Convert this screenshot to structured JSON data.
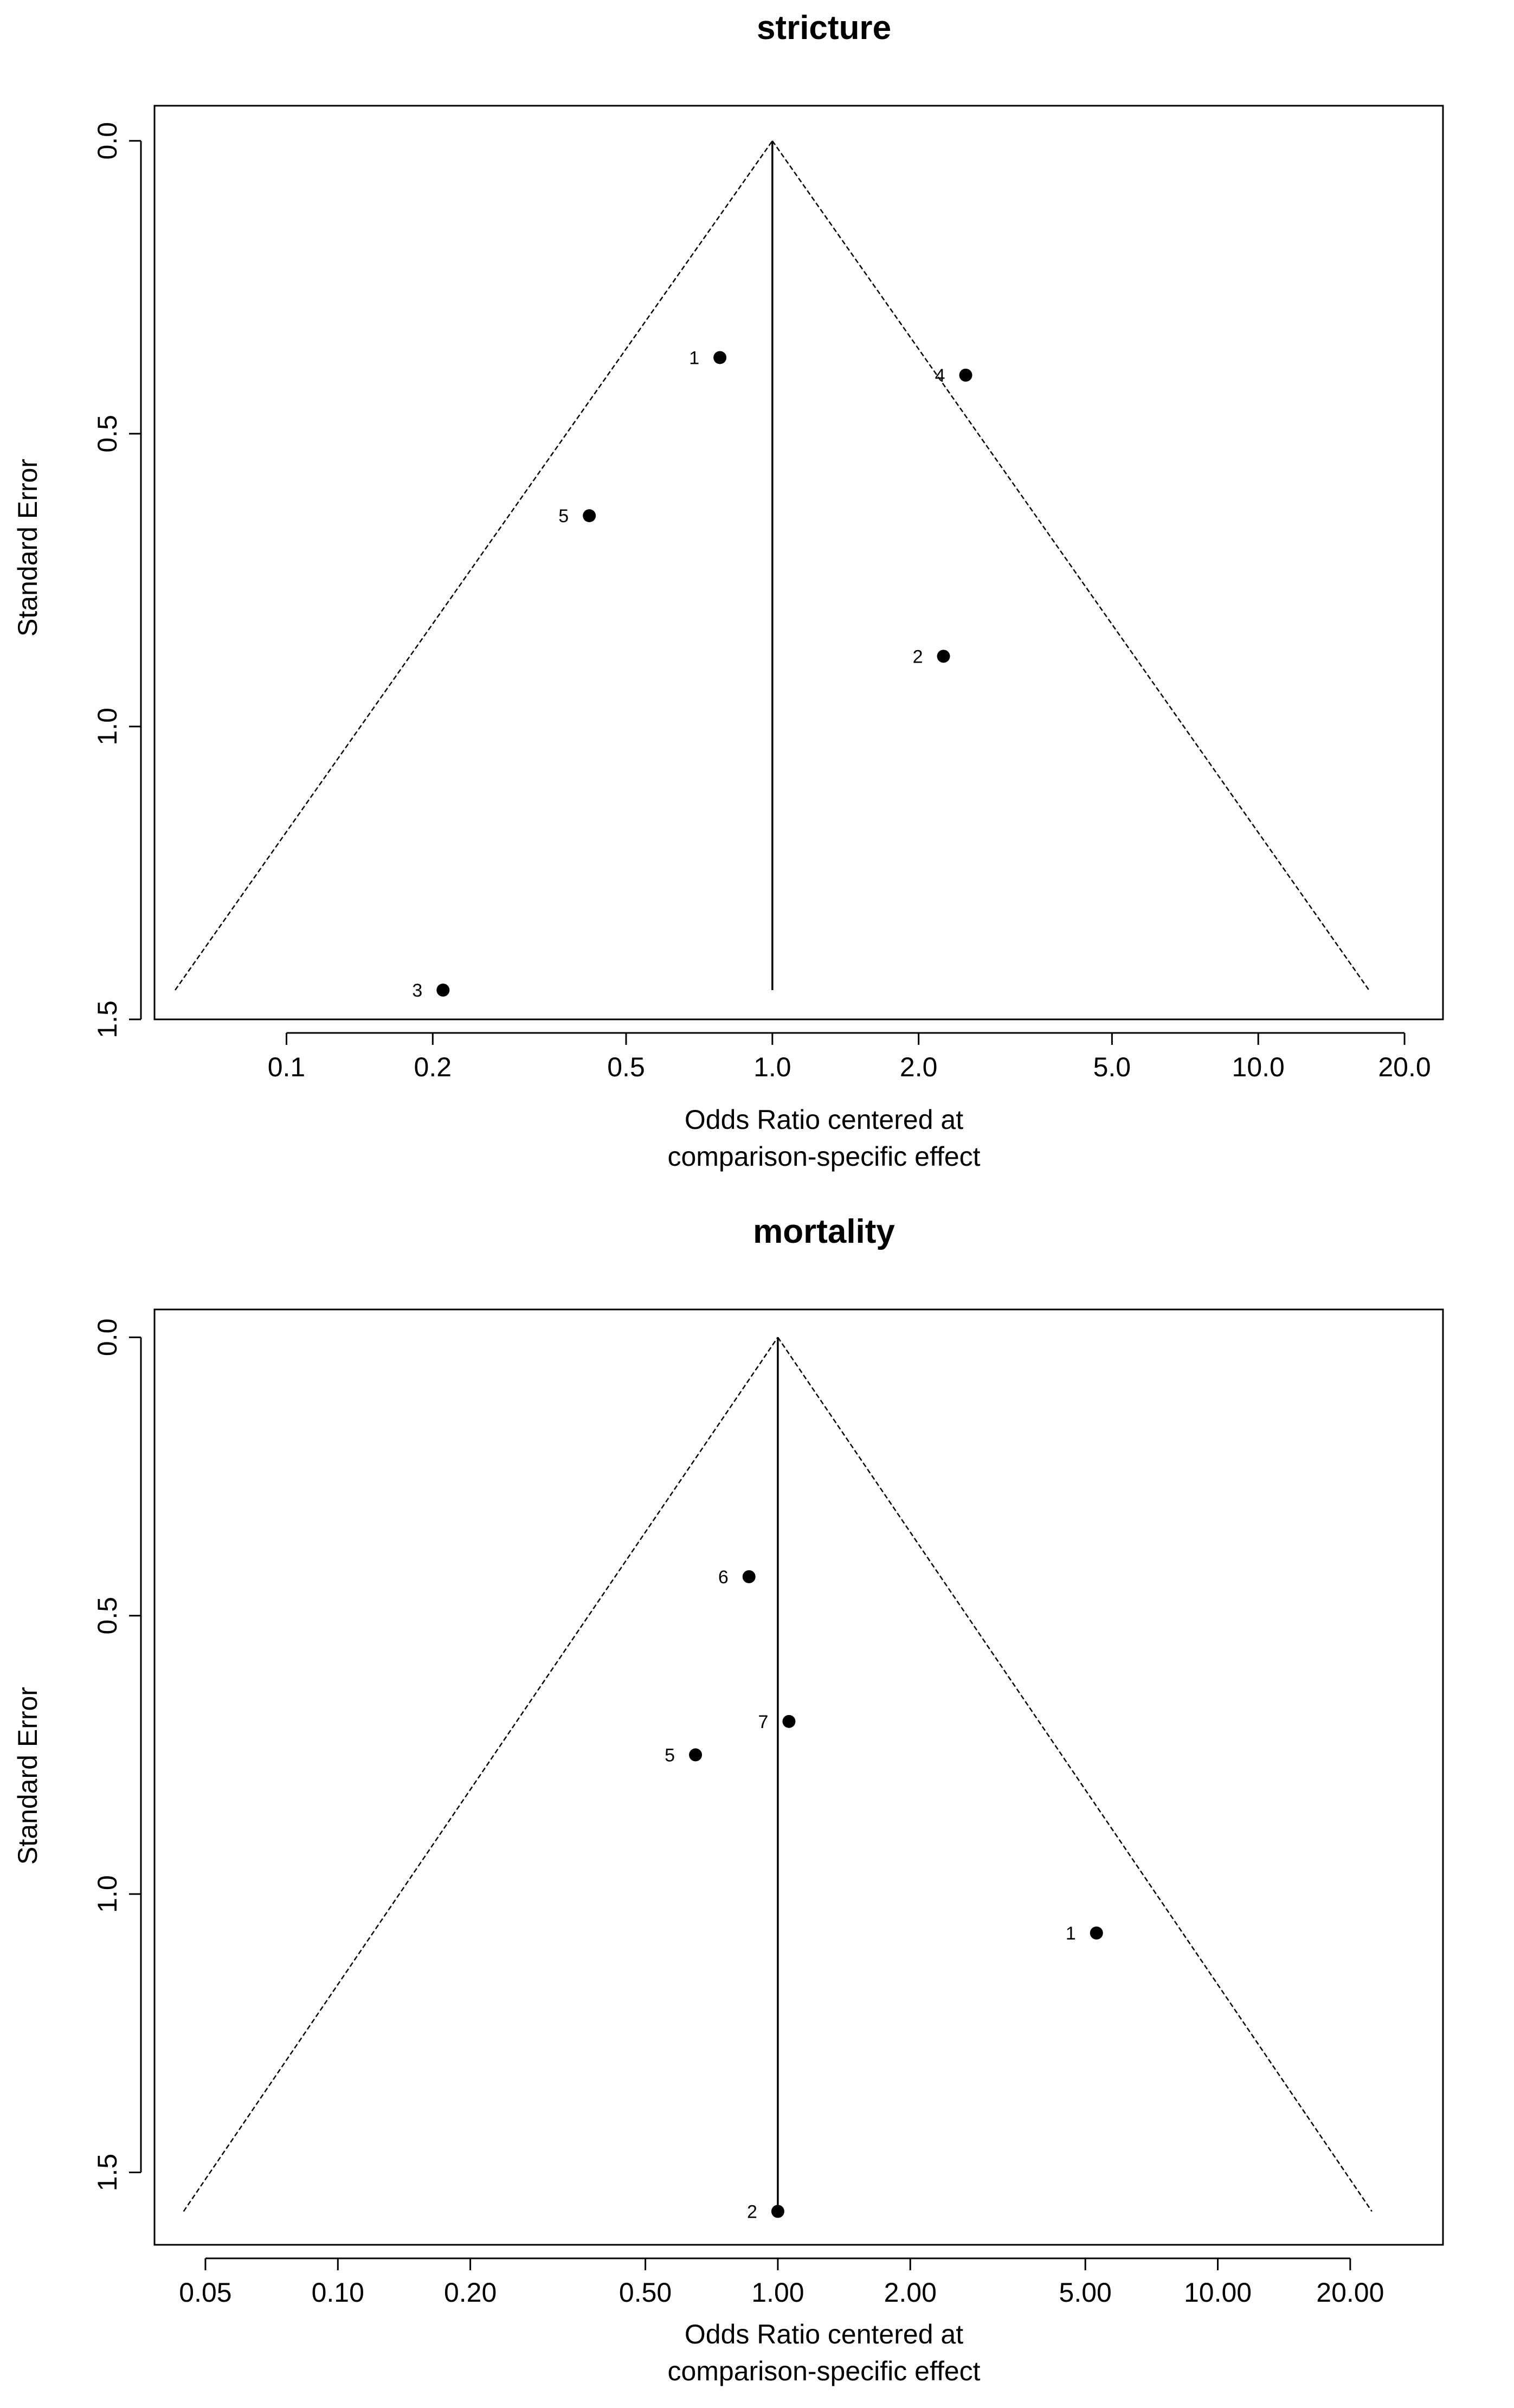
{
  "chart_data": [
    {
      "type": "scatter",
      "title": "stricture",
      "xlabel": [
        "Odds Ratio centered at",
        "comparison-specific effect"
      ],
      "ylabel": "Standard Error",
      "x_scale": "log",
      "y_reversed": true,
      "xlim": [
        0.0535,
        24.0
      ],
      "ylim": [
        -0.06,
        1.5
      ],
      "x_ticks": [
        0.1,
        0.2,
        0.5,
        1.0,
        2.0,
        5.0,
        10.0,
        20.0
      ],
      "x_tick_labels": [
        "0.1",
        "0.2",
        "0.5",
        "1.0",
        "2.0",
        "5.0",
        "10.0",
        "20.0"
      ],
      "y_ticks": [
        0.0,
        0.5,
        1.0,
        1.5
      ],
      "y_tick_labels": [
        "0.0",
        "0.5",
        "1.0",
        "1.5"
      ],
      "funnel": {
        "center": 1.0,
        "se_max": 1.45,
        "left_x": 0.059,
        "right_x": 16.9
      },
      "points": [
        {
          "label": "1",
          "x": 0.78,
          "y": 0.37
        },
        {
          "label": "2",
          "x": 2.25,
          "y": 0.88
        },
        {
          "label": "3",
          "x": 0.21,
          "y": 1.45
        },
        {
          "label": "4",
          "x": 2.5,
          "y": 0.4
        },
        {
          "label": "5",
          "x": 0.42,
          "y": 0.64
        }
      ]
    },
    {
      "type": "scatter",
      "title": "mortality",
      "xlabel": [
        "Odds Ratio centered at",
        "comparison-specific effect"
      ],
      "ylabel": "Standard Error",
      "x_scale": "log",
      "y_reversed": true,
      "xlim": [
        0.0383,
        32.5
      ],
      "ylim": [
        -0.05,
        1.63
      ],
      "x_ticks": [
        0.05,
        0.1,
        0.2,
        0.5,
        1.0,
        2.0,
        5.0,
        10.0,
        20.0
      ],
      "x_tick_labels": [
        "0.05",
        "0.10",
        "0.20",
        "0.50",
        "1.00",
        "2.00",
        "5.00",
        "10.00",
        "20.00"
      ],
      "y_ticks": [
        0.0,
        0.5,
        1.0,
        1.5
      ],
      "y_tick_labels": [
        "0.0",
        "0.5",
        "1.0",
        "1.5"
      ],
      "funnel": {
        "center": 1.0,
        "se_max": 1.57,
        "left_x": 0.0446,
        "right_x": 22.4
      },
      "points": [
        {
          "label": "1",
          "x": 5.3,
          "y": 1.07
        },
        {
          "label": "2",
          "x": 1.0,
          "y": 1.57
        },
        {
          "label": "5",
          "x": 0.65,
          "y": 0.75
        },
        {
          "label": "6",
          "x": 0.86,
          "y": 0.43
        },
        {
          "label": "7",
          "x": 1.06,
          "y": 0.69
        }
      ]
    }
  ]
}
